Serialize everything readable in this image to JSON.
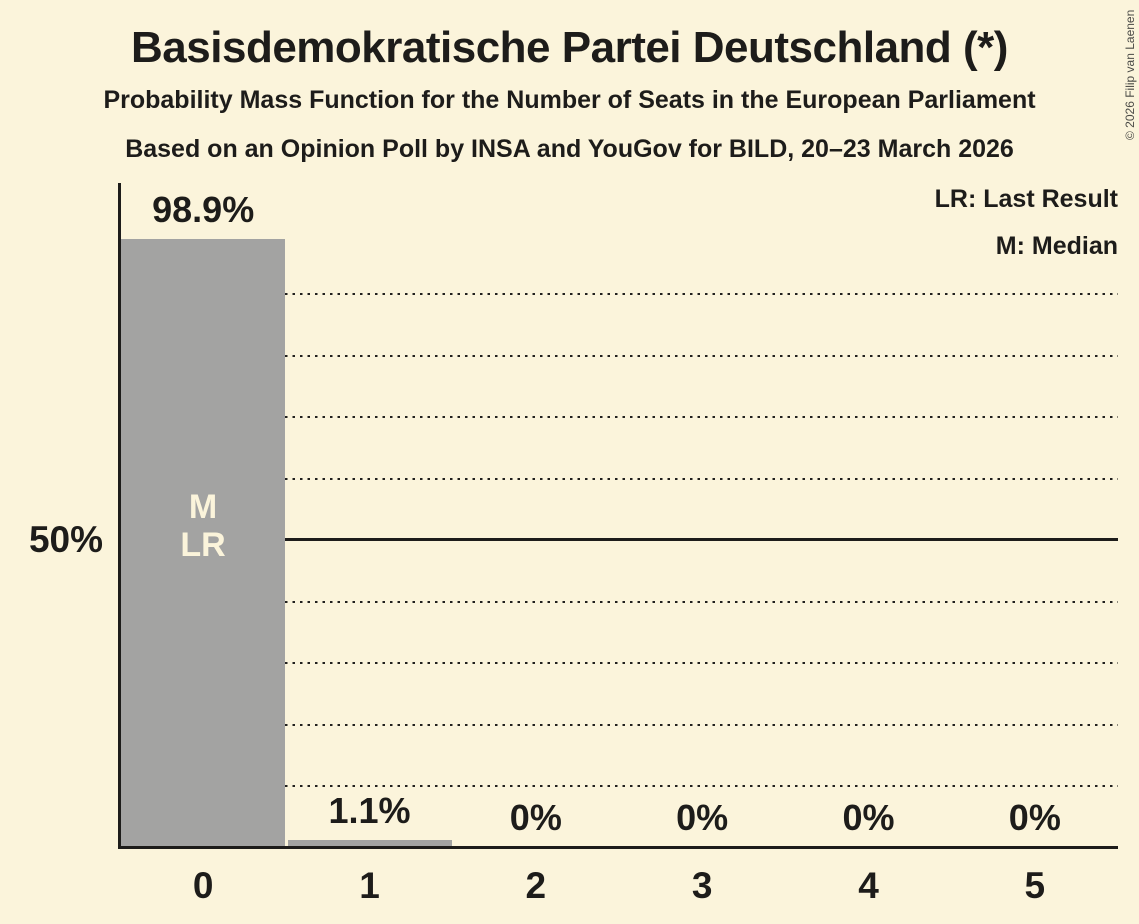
{
  "page": {
    "background_color": "#FBF4DB",
    "text_color": "#1D1C1A"
  },
  "copyright_notice": "© 2026 Filip van Laenen",
  "chart_data": {
    "type": "bar",
    "title": "Basisdemokratische Partei Deutschland (*)",
    "subtitle": "Probability Mass Function for the Number of Seats in the European Parliament",
    "source_line": "Based on an Opinion Poll by INSA and YouGov for BILD, 20–23 March 2026",
    "xlabel": "",
    "ylabel": "",
    "categories": [
      "0",
      "1",
      "2",
      "3",
      "4",
      "5"
    ],
    "values": [
      98.9,
      1.1,
      0,
      0,
      0,
      0
    ],
    "value_labels": [
      "98.9%",
      "1.1%",
      "0%",
      "0%",
      "0%",
      "0%"
    ],
    "ylim": [
      0,
      108
    ],
    "y_axis_tick": {
      "percent": 50,
      "label": "50%"
    },
    "gridlines": {
      "step_percent": 10,
      "style": "dotted",
      "solid_at_percent": 50
    },
    "legend_entries": [
      "LR: Last Result",
      "M: Median"
    ],
    "legend_position": "top-right",
    "bar_annotations": [
      {
        "bar_index": 0,
        "lines": [
          "M",
          "LR"
        ]
      }
    ],
    "bar_color": "#A3A3A2",
    "annotation_text_color": "#FBF4DB",
    "axis_color": "#1D1C1A"
  }
}
